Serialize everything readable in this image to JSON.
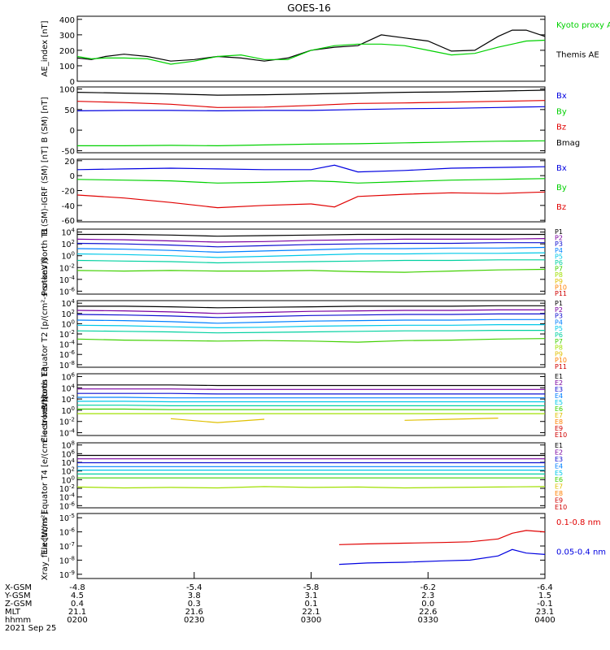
{
  "title": "GOES-16",
  "colors": {
    "black": "#000000",
    "red": "#e00000",
    "green": "#00d000",
    "blue": "#0000e0",
    "P1": "#000000",
    "P2": "#7a00a0",
    "P3": "#1010d0",
    "P4": "#0080ff",
    "P5": "#00c8e8",
    "P6": "#00d0a0",
    "P7": "#40d000",
    "P8": "#a0e000",
    "P9": "#e0c000",
    "P10": "#ff8000",
    "P11": "#d00000"
  },
  "time_axis": {
    "ticks": [
      "0200",
      "0230",
      "0300",
      "0330",
      "0400"
    ],
    "rows": [
      {
        "label": "X-GSM",
        "values": [
          "-4.8",
          "-5.4",
          "-5.8",
          "-6.2",
          "-6.4"
        ]
      },
      {
        "label": "Y-GSM",
        "values": [
          "4.5",
          "3.8",
          "3.1",
          "2.3",
          "1.5"
        ]
      },
      {
        "label": "Z-GSM",
        "values": [
          "0.4",
          "0.3",
          "0.1",
          "0.0",
          "-0.1"
        ]
      },
      {
        "label": "MLT",
        "values": [
          "21.1",
          "21.6",
          "22.1",
          "22.6",
          "23.1"
        ]
      },
      {
        "label": "hhmm",
        "values": [
          "0200",
          "0230",
          "0300",
          "0330",
          "0400"
        ]
      }
    ],
    "date": "2021 Sep 25"
  },
  "chart_data": [
    {
      "type": "line",
      "id": "ae",
      "ylabel": "AE_index [nT]",
      "ylim": [
        0,
        420
      ],
      "yticks": [
        "0",
        "100",
        "200",
        "300",
        "400"
      ],
      "x": [
        0,
        0.03,
        0.06,
        0.1,
        0.15,
        0.2,
        0.25,
        0.3,
        0.35,
        0.4,
        0.45,
        0.5,
        0.55,
        0.6,
        0.65,
        0.7,
        0.75,
        0.8,
        0.85,
        0.9,
        0.93,
        0.96,
        1.0
      ],
      "series": [
        {
          "name": "Themis AE",
          "color": "black",
          "values": [
            150,
            140,
            160,
            175,
            160,
            130,
            140,
            160,
            150,
            130,
            150,
            200,
            220,
            230,
            300,
            280,
            260,
            195,
            200,
            290,
            330,
            330,
            290
          ]
        },
        {
          "name": "Kyoto proxy AE",
          "color": "green",
          "values": [
            160,
            145,
            150,
            150,
            145,
            110,
            130,
            160,
            170,
            140,
            140,
            200,
            230,
            240,
            240,
            230,
            200,
            170,
            180,
            220,
            240,
            260,
            265
          ]
        }
      ],
      "legend": [
        "Kyoto proxy AE",
        "Themis AE"
      ]
    },
    {
      "type": "line",
      "id": "bsm",
      "ylabel": "B (SM) [nT]",
      "ylim": [
        -55,
        105
      ],
      "yticks": [
        "-50",
        "0",
        "50",
        "100"
      ],
      "x": [
        0,
        0.1,
        0.2,
        0.3,
        0.4,
        0.5,
        0.6,
        0.7,
        0.8,
        0.9,
        1.0
      ],
      "series": [
        {
          "name": "Bx",
          "color": "blue",
          "values": [
            47,
            48,
            48,
            47,
            48,
            48,
            50,
            52,
            53,
            55,
            57
          ]
        },
        {
          "name": "By",
          "color": "green",
          "values": [
            -38,
            -38,
            -37,
            -38,
            -36,
            -34,
            -33,
            -31,
            -29,
            -27,
            -26
          ]
        },
        {
          "name": "Bz",
          "color": "red",
          "values": [
            70,
            67,
            63,
            55,
            56,
            60,
            65,
            66,
            68,
            70,
            72
          ]
        },
        {
          "name": "Bmag",
          "color": "black",
          "values": [
            92,
            90,
            88,
            85,
            86,
            88,
            90,
            92,
            93,
            95,
            97
          ]
        }
      ],
      "legend": [
        "Bx",
        "By",
        "Bz",
        "Bmag"
      ]
    },
    {
      "type": "line",
      "id": "bigrf",
      "ylabel": "B (SM)-IGRF (SM) [nT]",
      "ylim": [
        -62,
        22
      ],
      "yticks": [
        "-60",
        "-40",
        "-20",
        "0",
        "20"
      ],
      "x": [
        0,
        0.1,
        0.2,
        0.3,
        0.4,
        0.5,
        0.55,
        0.6,
        0.7,
        0.8,
        0.9,
        1.0
      ],
      "series": [
        {
          "name": "Bx",
          "color": "blue",
          "values": [
            8,
            9,
            10,
            9,
            8,
            8,
            14,
            5,
            7,
            10,
            11,
            12
          ]
        },
        {
          "name": "By",
          "color": "green",
          "values": [
            -5,
            -6,
            -7,
            -10,
            -9,
            -7,
            -8,
            -10,
            -8,
            -6,
            -5,
            -4
          ]
        },
        {
          "name": "Bz",
          "color": "red",
          "values": [
            -26,
            -30,
            -36,
            -43,
            -40,
            -38,
            -42,
            -28,
            -25,
            -23,
            -24,
            -22
          ]
        }
      ],
      "legend": [
        "Bx",
        "By",
        "Bz"
      ]
    },
    {
      "type": "line",
      "id": "pn",
      "ylabel": "Protons North T1",
      "ylog": true,
      "ylim": [
        -6.5,
        4.5
      ],
      "yticks": [
        "10^4",
        "10^2",
        "10^0",
        "10^-2",
        "10^-4",
        "10^-6"
      ],
      "ytick_exp": [
        4,
        2,
        0,
        -2,
        -4,
        -6
      ],
      "legend": [
        "P1",
        "P2",
        "P3",
        "P4",
        "P5",
        "P6",
        "P7",
        "P8",
        "P9",
        "P10",
        "P11"
      ],
      "series": [
        {
          "name": "P1",
          "values": [
            3.6,
            3.6,
            3.5,
            3.3,
            3.4,
            3.5,
            3.6,
            3.6,
            3.6,
            3.6,
            3.6
          ]
        },
        {
          "name": "P2",
          "values": [
            2.8,
            2.7,
            2.5,
            2.3,
            2.4,
            2.6,
            2.7,
            2.8,
            2.8,
            2.8,
            2.9
          ]
        },
        {
          "name": "P3",
          "values": [
            2.1,
            2.0,
            1.8,
            1.5,
            1.7,
            1.9,
            2.0,
            2.1,
            2.1,
            2.2,
            2.2
          ]
        },
        {
          "name": "P4",
          "values": [
            1.2,
            1.1,
            0.9,
            0.6,
            0.8,
            1.0,
            1.2,
            1.2,
            1.3,
            1.3,
            1.4
          ]
        },
        {
          "name": "P5",
          "values": [
            0.3,
            0.2,
            0.0,
            -0.3,
            -0.1,
            0.1,
            0.3,
            0.3,
            0.4,
            0.4,
            0.5
          ]
        },
        {
          "name": "P6",
          "values": [
            -0.8,
            -0.9,
            -1.0,
            -1.2,
            -1.1,
            -1.0,
            -0.9,
            -0.8,
            -0.8,
            -0.7,
            -0.7
          ]
        },
        {
          "name": "P7",
          "values": [
            -2.5,
            -2.6,
            -2.5,
            -2.6,
            -2.6,
            -2.5,
            -2.7,
            -2.8,
            -2.6,
            -2.4,
            -2.3
          ]
        }
      ]
    },
    {
      "type": "line",
      "id": "pe",
      "ylabel": "Protons Equator T2 [p/(cm²-s-sr-keV)]",
      "ylog": true,
      "ylim": [
        -8.5,
        4.5
      ],
      "yticks": [
        "10^4",
        "10^2",
        "10^0",
        "10^-2",
        "10^-4",
        "10^-6",
        "10^-8"
      ],
      "ytick_exp": [
        4,
        2,
        0,
        -2,
        -4,
        -6,
        -8
      ],
      "legend": [
        "P1",
        "P2",
        "P3",
        "P4",
        "P5",
        "P6",
        "P7",
        "P8",
        "P9",
        "P10",
        "P11"
      ],
      "series": [
        {
          "name": "P1",
          "values": [
            3.4,
            3.4,
            3.3,
            3.1,
            3.2,
            3.3,
            3.4,
            3.4,
            3.4,
            3.5,
            3.5
          ]
        },
        {
          "name": "P2",
          "values": [
            2.6,
            2.5,
            2.3,
            2.0,
            2.2,
            2.4,
            2.5,
            2.6,
            2.6,
            2.7,
            2.7
          ]
        },
        {
          "name": "P3",
          "values": [
            1.8,
            1.7,
            1.5,
            1.2,
            1.4,
            1.6,
            1.7,
            1.8,
            1.8,
            1.9,
            1.9
          ]
        },
        {
          "name": "P4",
          "values": [
            0.7,
            0.6,
            0.4,
            0.1,
            0.3,
            0.5,
            0.6,
            0.7,
            0.7,
            0.8,
            0.8
          ]
        },
        {
          "name": "P5",
          "values": [
            -0.3,
            -0.4,
            -0.6,
            -0.8,
            -0.7,
            -0.5,
            -0.4,
            -0.3,
            -0.3,
            -0.2,
            -0.2
          ]
        },
        {
          "name": "P6",
          "values": [
            -1.4,
            -1.5,
            -1.6,
            -1.8,
            -1.7,
            -1.6,
            -1.5,
            -1.4,
            -1.4,
            -1.3,
            -1.3
          ]
        },
        {
          "name": "P7",
          "values": [
            -3.0,
            -3.2,
            -3.3,
            -3.4,
            -3.3,
            -3.4,
            -3.6,
            -3.3,
            -3.2,
            -3.0,
            -2.9
          ]
        }
      ]
    },
    {
      "type": "line",
      "id": "en",
      "ylabel": "Electrons North T3",
      "ylog": true,
      "ylim": [
        -4.5,
        6.5
      ],
      "yticks": [
        "10^6",
        "10^4",
        "10^2",
        "10^0",
        "10^-2",
        "10^-4"
      ],
      "ytick_exp": [
        6,
        4,
        2,
        0,
        -2,
        -4
      ],
      "legend": [
        "E1",
        "E2",
        "E3",
        "E4",
        "E5",
        "E6",
        "E7",
        "E8",
        "E9",
        "E10"
      ],
      "series": [
        {
          "name": "E1",
          "values": [
            4.5,
            4.5,
            4.5,
            4.4,
            4.4,
            4.4,
            4.4,
            4.4,
            4.4,
            4.4,
            4.4
          ]
        },
        {
          "name": "E2",
          "values": [
            3.8,
            3.8,
            3.8,
            3.7,
            3.7,
            3.7,
            3.7,
            3.7,
            3.7,
            3.7,
            3.7
          ]
        },
        {
          "name": "E3",
          "values": [
            3.0,
            3.0,
            3.0,
            2.9,
            2.9,
            2.9,
            2.9,
            2.9,
            2.9,
            2.9,
            2.9
          ]
        },
        {
          "name": "E4",
          "values": [
            2.3,
            2.3,
            2.2,
            2.2,
            2.2,
            2.2,
            2.2,
            2.2,
            2.2,
            2.2,
            2.2
          ]
        },
        {
          "name": "E5",
          "values": [
            1.6,
            1.6,
            1.5,
            1.5,
            1.5,
            1.5,
            1.5,
            1.5,
            1.5,
            1.5,
            1.5
          ]
        },
        {
          "name": "E6",
          "values": [
            0.9,
            0.9,
            0.8,
            0.8,
            0.8,
            0.8,
            0.8,
            0.8,
            0.8,
            0.8,
            0.8
          ]
        },
        {
          "name": "E7",
          "values": [
            0.2,
            0.2,
            0.1,
            0.1,
            0.1,
            0.1,
            0.1,
            0.1,
            0.1,
            0.1,
            0.1
          ]
        },
        {
          "name": "E8",
          "values": [
            -0.6,
            -0.6,
            -0.6,
            -0.6,
            -0.6,
            -0.6,
            -0.6,
            -0.6,
            -0.6,
            -0.6,
            -0.6
          ]
        },
        {
          "name": "E9",
          "values": [
            null,
            null,
            -1.5,
            -2.2,
            -1.6,
            null,
            null,
            -1.8,
            -1.6,
            -1.4,
            null
          ]
        }
      ]
    },
    {
      "type": "line",
      "id": "ee",
      "ylabel": "Electrons Equator T4 [e/(cm²-s-sr-keV)]",
      "ylog": true,
      "ylim": [
        -6.5,
        8.5
      ],
      "yticks": [
        "10^8",
        "10^6",
        "10^4",
        "10^2",
        "10^0",
        "10^-2",
        "10^-4",
        "10^-6"
      ],
      "ytick_exp": [
        8,
        6,
        4,
        2,
        0,
        -2,
        -4,
        -6
      ],
      "legend": [
        "E1",
        "E2",
        "E3",
        "E4",
        "E5",
        "E6",
        "E7",
        "E8",
        "E9",
        "E10"
      ],
      "series": [
        {
          "name": "E1",
          "values": [
            5.6,
            5.6,
            5.6,
            5.6,
            5.6,
            5.6,
            5.6,
            5.6,
            5.6,
            5.6,
            5.6
          ]
        },
        {
          "name": "E2",
          "values": [
            4.8,
            4.8,
            4.8,
            4.8,
            4.8,
            4.8,
            4.8,
            4.8,
            4.8,
            4.8,
            4.8
          ]
        },
        {
          "name": "E3",
          "values": [
            3.9,
            3.9,
            3.9,
            3.9,
            3.9,
            3.9,
            3.9,
            3.9,
            3.9,
            3.9,
            3.9
          ]
        },
        {
          "name": "E4",
          "values": [
            3.0,
            3.0,
            3.0,
            3.0,
            3.0,
            3.0,
            3.0,
            3.0,
            3.0,
            3.0,
            3.0
          ]
        },
        {
          "name": "E5",
          "values": [
            2.2,
            2.2,
            2.2,
            2.2,
            2.2,
            2.2,
            2.2,
            2.2,
            2.2,
            2.2,
            2.2
          ]
        },
        {
          "name": "E6",
          "values": [
            1.3,
            1.3,
            1.3,
            1.3,
            1.3,
            1.3,
            1.3,
            1.3,
            1.3,
            1.3,
            1.3
          ]
        },
        {
          "name": "E7",
          "values": [
            0.4,
            0.4,
            0.4,
            0.4,
            0.4,
            0.4,
            0.4,
            0.4,
            0.4,
            0.4,
            0.4
          ]
        },
        {
          "name": "E8",
          "values": [
            -1.7,
            -1.9,
            -1.8,
            -1.9,
            -1.6,
            -1.8,
            -1.7,
            -1.9,
            -1.8,
            -1.7,
            -1.6
          ]
        }
      ]
    },
    {
      "type": "line",
      "id": "xray",
      "ylabel": "Xray_flux [W/m²]",
      "ylog": true,
      "ylim": [
        -9.3,
        -4.7
      ],
      "yticks": [
        "10^-5",
        "10^-6",
        "10^-7",
        "10^-8",
        "10^-9"
      ],
      "ytick_exp": [
        -5,
        -6,
        -7,
        -8,
        -9
      ],
      "x": [
        0.56,
        0.62,
        0.7,
        0.78,
        0.84,
        0.9,
        0.93,
        0.96,
        1.0
      ],
      "series": [
        {
          "name": "0.1-0.8 nm",
          "color": "red",
          "values": [
            -6.9,
            -6.85,
            -6.8,
            -6.75,
            -6.7,
            -6.5,
            -6.1,
            -5.9,
            -6.0
          ]
        },
        {
          "name": "0.05-0.4 nm",
          "color": "blue",
          "values": [
            -8.3,
            -8.2,
            -8.15,
            -8.05,
            -8.0,
            -7.7,
            -7.25,
            -7.5,
            -7.6
          ]
        }
      ],
      "legend": [
        "0.1-0.8 nm",
        "0.05-0.4 nm"
      ]
    }
  ]
}
